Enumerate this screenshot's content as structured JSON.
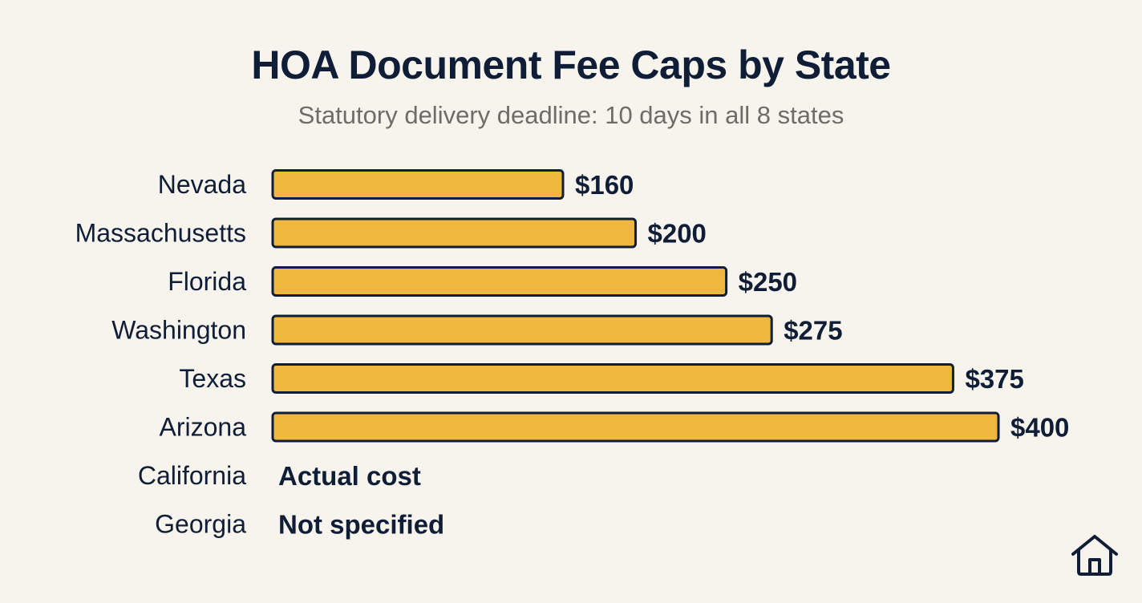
{
  "chart_data": {
    "type": "bar",
    "orientation": "horizontal",
    "title": "HOA Document Fee Caps by State",
    "subtitle": "Statutory delivery deadline: 10 days in all 8 states",
    "xlabel": "",
    "ylabel": "",
    "xlim": [
      0,
      400
    ],
    "grid": false,
    "categories": [
      "Nevada",
      "Massachusetts",
      "Florida",
      "Washington",
      "Texas",
      "Arizona",
      "California",
      "Georgia"
    ],
    "values": [
      160,
      200,
      250,
      275,
      375,
      400,
      null,
      null
    ],
    "labels": [
      "$160",
      "$200",
      "$250",
      "$275",
      "$375",
      "$400",
      "Actual cost",
      "Not specified"
    ],
    "bar_color": "#edb83d",
    "bar_outline_color": "#0f1e36"
  },
  "footer": {
    "icon": "home-icon"
  }
}
